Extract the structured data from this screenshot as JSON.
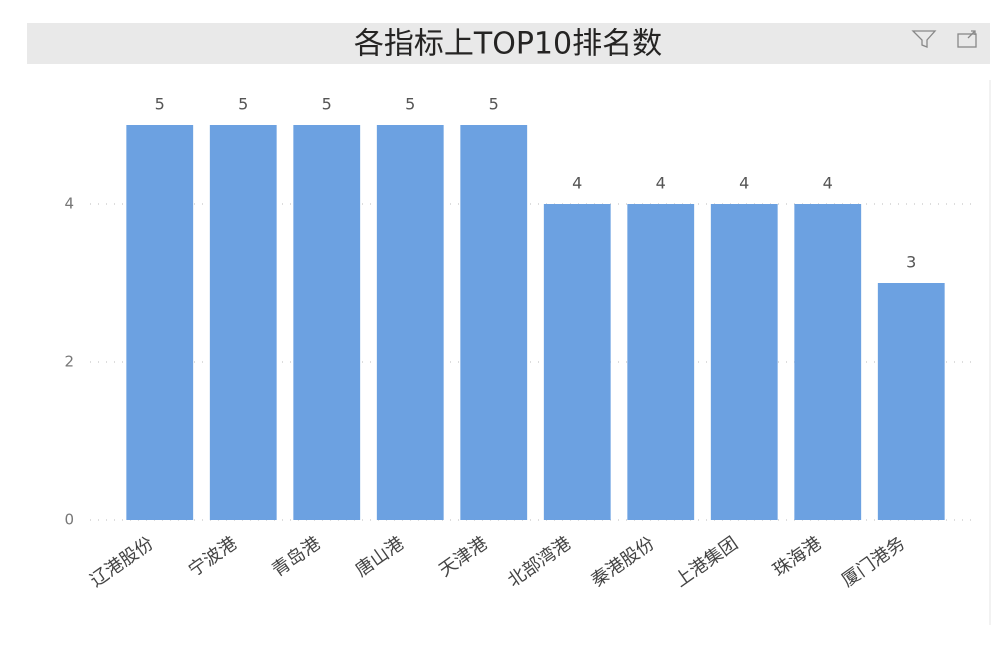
{
  "chart_data": {
    "type": "bar",
    "title": "各指标上TOP10排名数",
    "categories": [
      "辽港股份",
      "宁波港",
      "青岛港",
      "唐山港",
      "天津港",
      "北部湾港",
      "秦港股份",
      "上港集团",
      "珠海港",
      "厦门港务"
    ],
    "values": [
      5,
      5,
      5,
      5,
      5,
      4,
      4,
      4,
      4,
      3
    ],
    "color": "#6CA1E1",
    "ylim": [
      0,
      5
    ],
    "yticks": [
      0,
      2,
      4
    ],
    "grid": true,
    "data_labels": true
  }
}
